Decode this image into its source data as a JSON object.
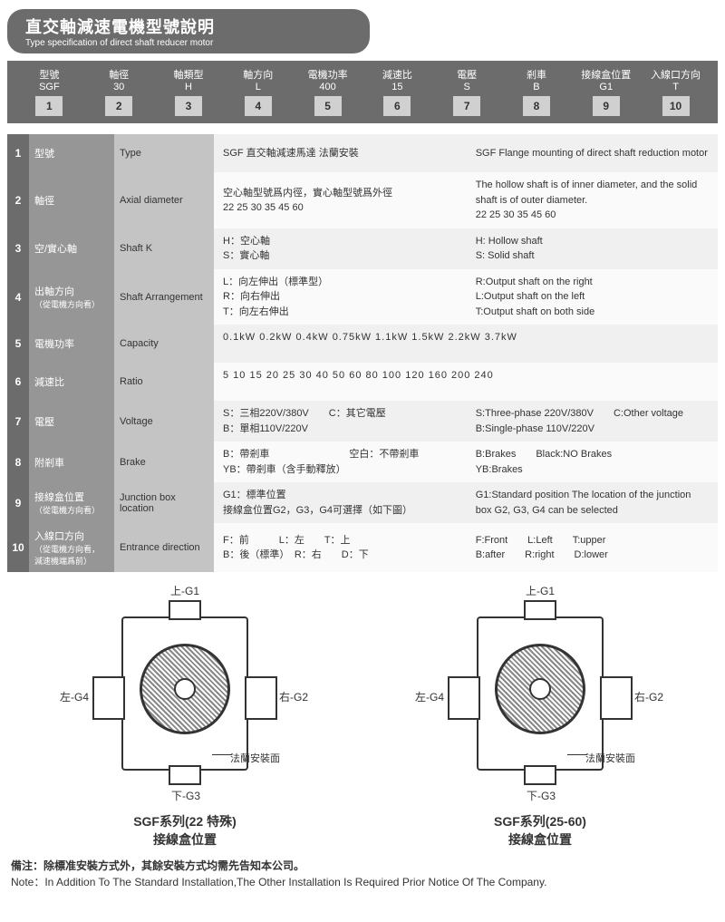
{
  "header": {
    "title": "直交軸減速電機型號說明",
    "subtitle": "Type specification of direct shaft reducer motor"
  },
  "code": [
    {
      "l1": "型號",
      "l2": "SGF",
      "n": "1"
    },
    {
      "l1": "軸徑",
      "l2": "30",
      "n": "2"
    },
    {
      "l1": "軸類型",
      "l2": "H",
      "n": "3"
    },
    {
      "l1": "軸方向",
      "l2": "L",
      "n": "4"
    },
    {
      "l1": "電機功率",
      "l2": "400",
      "n": "5"
    },
    {
      "l1": "減速比",
      "l2": "15",
      "n": "6"
    },
    {
      "l1": "電壓",
      "l2": "S",
      "n": "7"
    },
    {
      "l1": "剎車",
      "l2": "B",
      "n": "8"
    },
    {
      "l1": "接線盒位置",
      "l2": "G1",
      "n": "9"
    },
    {
      "l1": "入線口方向",
      "l2": "T",
      "n": "10"
    }
  ],
  "rows": [
    {
      "n": "1",
      "cn": "型號",
      "cn2": "",
      "mid": "Type",
      "rcn": "SGF  直交軸減速馬達  法蘭安裝",
      "ren": "SGF Flange mounting of direct shaft reduction motor"
    },
    {
      "n": "2",
      "cn": "軸徑",
      "cn2": "",
      "mid": "Axial diameter",
      "rcn": "空心軸型號爲内徑，實心軸型號爲外徑<br>22  25  30  35  45  60",
      "ren": "The hollow shaft is of inner diameter, and the solid shaft is of outer diameter.<br>22  25  30  35  45  60"
    },
    {
      "n": "3",
      "cn": "空/實心軸",
      "cn2": "",
      "mid": "Shaft K",
      "rcn": "H：空心軸<br>S：實心軸",
      "ren": "H: Hollow shaft<br>S: Solid shaft"
    },
    {
      "n": "4",
      "cn": "出軸方向",
      "cn2": "（從電機方向看）",
      "mid": "Shaft Arrangement",
      "rcn": "L：向左伸出（標準型）<br>R：向右伸出<br>T：向左右伸出",
      "ren": "R:Output shaft on the right<br>L:Output shaft on the left<br>T:Output shaft on both side"
    },
    {
      "n": "5",
      "cn": "電機功率",
      "cn2": "",
      "mid": "Capacity",
      "rcn": "0.1kW   0.2kW   0.4kW   0.75kW   1.1kW   1.5kW   2.2kW   3.7kW",
      "ren": ""
    },
    {
      "n": "6",
      "cn": "減速比",
      "cn2": "",
      "mid": "Ratio",
      "rcn": "5   10   15   20   25   30   40   50   60   80   100   120   160   200   240",
      "ren": ""
    },
    {
      "n": "7",
      "cn": "電壓",
      "cn2": "",
      "mid": "Voltage",
      "rcn": "S：三相220V/380V　　C：其它電壓<br>B：單相110V/220V",
      "ren": "S:Three-phase 220V/380V　　C:Other voltage<br>B:Single-phase 110V/220V"
    },
    {
      "n": "8",
      "cn": "附剎車",
      "cn2": "",
      "mid": "Brake",
      "rcn": "B：帶剎車　　　　　　　　空白：不帶剎車<br>YB：帶剎車（含手動釋放）",
      "ren": "B:Brakes　　Black:NO Brakes<br>YB:Brakes"
    },
    {
      "n": "9",
      "cn": "接線盒位置",
      "cn2": "（從電機方向看）",
      "mid": "Junction box location",
      "rcn": "G1：標準位置<br>接線盒位置G2，G3，G4可選擇（如下圖）",
      "ren": "G1:Standard position The location of the junction box G2, G3, G4 can be selected"
    },
    {
      "n": "10",
      "cn": "入線口方向",
      "cn2": "（從電機方向看，<br>減速機端爲前）",
      "mid": "Entrance direction",
      "rcn": "F：前　　　L：左　　T：上<br>B：後（標準）　R：右　　D：下",
      "ren": "F:Front　　L:Left　　T:upper<br>B:after　　R:right　　D:lower"
    }
  ],
  "diagram": {
    "top": "上-G1",
    "left": "左-G4",
    "right": "右-G2",
    "bottom": "下-G3",
    "flange": "法蘭安裝面",
    "t1a": "SGF系列(22 特殊)",
    "t1b": "接線盒位置",
    "t2a": "SGF系列(25-60)",
    "t2b": "接線盒位置"
  },
  "note": {
    "cn": "備注：除標准安裝方式外，其餘安裝方式均需先告知本公司。",
    "en": "Note：In Addition To The Standard Installation,The Other Installation Is Required Prior Notice Of The Company."
  }
}
